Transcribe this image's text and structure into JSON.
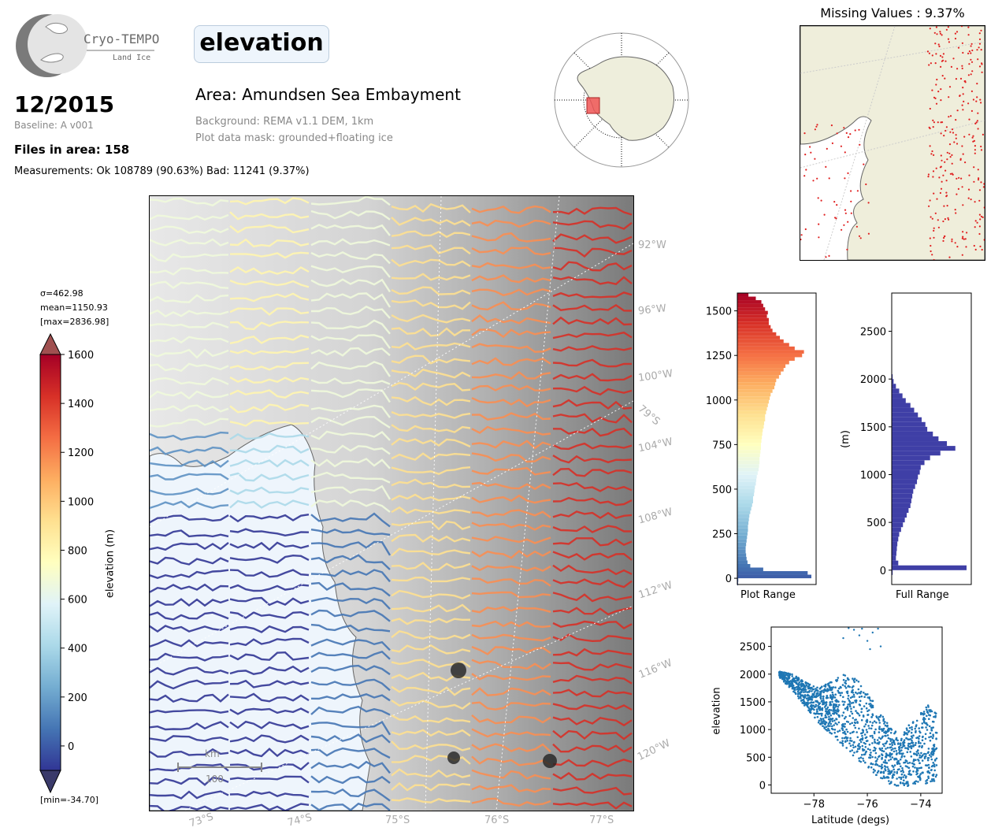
{
  "header": {
    "logo_name": "Cryo-TEMPO",
    "logo_sub": "Land Ice",
    "date": "12/2015",
    "baseline": "Baseline: A v001",
    "files_in_area": "Files in area: 158",
    "measurements": "Measurements: Ok 108789 (90.63%) Bad: 11241 (9.37%)",
    "parameter": "elevation",
    "area": "Area: Amundsen Sea Embayment",
    "background": "Background: REMA v1.1 DEM, 1km",
    "mask": "Plot data mask: grounded+floating ice"
  },
  "missing_map": {
    "title": "Missing Values : 9.37%"
  },
  "stats": {
    "sigma": "σ=462.98",
    "mean": "mean=1150.93",
    "max": "[max=2836.98]",
    "min": "[min=-34.70]"
  },
  "colorbar": {
    "label": "elevation (m)",
    "ticks": [
      "1600",
      "1400",
      "1200",
      "1000",
      "800",
      "600",
      "400",
      "200",
      "0"
    ],
    "colors": [
      "#a50026",
      "#d73027",
      "#f46d43",
      "#fdae61",
      "#fee090",
      "#ffffbf",
      "#e0f3f8",
      "#abd9e9",
      "#74add1",
      "#4575b4",
      "#313695"
    ]
  },
  "main_map": {
    "lon_labels": [
      "92°W",
      "96°W",
      "100°W",
      "104°W",
      "108°W",
      "112°W",
      "116°W",
      "120°W"
    ],
    "lat_labels": [
      "73°S",
      "74°S",
      "75°S",
      "76°S",
      "77°S"
    ],
    "lat_inner": "79°S",
    "scalebar_unit": "km",
    "scalebar_value": "100"
  },
  "chart_data": [
    {
      "type": "bar",
      "orientation": "horizontal",
      "xlabel": "Plot Range",
      "yticks": [
        "1500",
        "1250",
        "1000",
        "750",
        "500",
        "250",
        "0"
      ],
      "ylim": [
        -35,
        1600
      ],
      "bin_centers": [
        -30,
        -10,
        10,
        30,
        50,
        70,
        90,
        110,
        130,
        150,
        170,
        190,
        210,
        230,
        250,
        270,
        290,
        310,
        330,
        350,
        370,
        390,
        410,
        430,
        450,
        470,
        490,
        510,
        530,
        550,
        570,
        590,
        610,
        630,
        650,
        670,
        690,
        710,
        730,
        750,
        770,
        790,
        810,
        830,
        850,
        870,
        890,
        910,
        930,
        950,
        970,
        990,
        1010,
        1030,
        1050,
        1070,
        1090,
        1110,
        1130,
        1150,
        1170,
        1190,
        1210,
        1230,
        1250,
        1270,
        1290,
        1310,
        1330,
        1350,
        1370,
        1390,
        1410,
        1430,
        1450,
        1470,
        1490,
        1510,
        1530,
        1550,
        1570,
        1590
      ],
      "counts": [
        8,
        10,
        800,
        760,
        280,
        140,
        110,
        100,
        95,
        90,
        90,
        95,
        100,
        105,
        110,
        115,
        115,
        120,
        125,
        130,
        140,
        150,
        160,
        170,
        170,
        180,
        185,
        190,
        200,
        205,
        210,
        220,
        230,
        235,
        240,
        240,
        245,
        250,
        255,
        255,
        260,
        265,
        270,
        275,
        285,
        290,
        300,
        300,
        310,
        320,
        330,
        340,
        350,
        360,
        380,
        400,
        410,
        420,
        450,
        470,
        500,
        520,
        560,
        620,
        700,
        720,
        620,
        560,
        500,
        460,
        420,
        380,
        360,
        340,
        340,
        320,
        330,
        300,
        280,
        260,
        200,
        120
      ]
    },
    {
      "type": "bar",
      "orientation": "horizontal",
      "xlabel": "Full Range",
      "ylabel": "(m)",
      "yticks": [
        "2500",
        "2000",
        "1500",
        "1000",
        "500",
        "0"
      ],
      "ylim": [
        -150,
        2900
      ],
      "bin_centers": [
        -25,
        25,
        75,
        125,
        175,
        225,
        275,
        325,
        375,
        425,
        475,
        525,
        575,
        625,
        675,
        725,
        775,
        825,
        875,
        925,
        975,
        1025,
        1075,
        1125,
        1175,
        1225,
        1275,
        1325,
        1375,
        1425,
        1475,
        1525,
        1575,
        1625,
        1675,
        1725,
        1775,
        1825,
        1875,
        1925,
        1975,
        2025
      ],
      "counts": [
        20,
        1600,
        140,
        90,
        100,
        110,
        120,
        140,
        160,
        200,
        240,
        280,
        320,
        360,
        400,
        420,
        440,
        460,
        500,
        540,
        560,
        600,
        620,
        700,
        820,
        1040,
        1360,
        1180,
        1000,
        880,
        760,
        720,
        640,
        560,
        480,
        400,
        300,
        230,
        160,
        90,
        40,
        20
      ]
    },
    {
      "type": "scatter",
      "xlabel": "Latitude (degs)",
      "ylabel": "elevation",
      "xticks": [
        "−78",
        "−76",
        "−74"
      ],
      "yticks": [
        "2500",
        "2000",
        "1500",
        "1000",
        "500",
        "0"
      ],
      "xlim": [
        -79.6,
        -73.2
      ],
      "ylim": [
        -150,
        2850
      ],
      "color": "#1f77b4",
      "band_upper": [
        [
          -79.3,
          2050
        ],
        [
          -78.8,
          2000
        ],
        [
          -78.3,
          1850
        ],
        [
          -77.8,
          1750
        ],
        [
          -77.3,
          1900
        ],
        [
          -76.9,
          2000
        ],
        [
          -76.5,
          1950
        ],
        [
          -76.0,
          1700
        ],
        [
          -75.5,
          1300
        ],
        [
          -75.1,
          1050
        ],
        [
          -74.8,
          900
        ],
        [
          -74.4,
          1100
        ],
        [
          -74.0,
          1300
        ],
        [
          -73.7,
          1450
        ],
        [
          -73.6,
          1400
        ]
      ],
      "band_lower": [
        [
          -79.3,
          1950
        ],
        [
          -78.8,
          1700
        ],
        [
          -78.3,
          1400
        ],
        [
          -77.8,
          1100
        ],
        [
          -77.3,
          900
        ],
        [
          -76.9,
          700
        ],
        [
          -76.5,
          500
        ],
        [
          -76.0,
          300
        ],
        [
          -75.5,
          80
        ],
        [
          -75.1,
          0
        ],
        [
          -74.8,
          -30
        ],
        [
          -74.4,
          -20
        ],
        [
          -74.0,
          0
        ],
        [
          -73.7,
          0
        ],
        [
          -73.6,
          50
        ]
      ],
      "outliers": [
        [
          -76.7,
          2830
        ],
        [
          -76.5,
          2800
        ],
        [
          -76.3,
          2700
        ],
        [
          -76.2,
          2820
        ],
        [
          -76.0,
          2600
        ],
        [
          -75.8,
          2750
        ],
        [
          -75.6,
          2820
        ],
        [
          -75.5,
          2500
        ],
        [
          -76.9,
          2650
        ],
        [
          -75.9,
          2450
        ]
      ]
    }
  ]
}
